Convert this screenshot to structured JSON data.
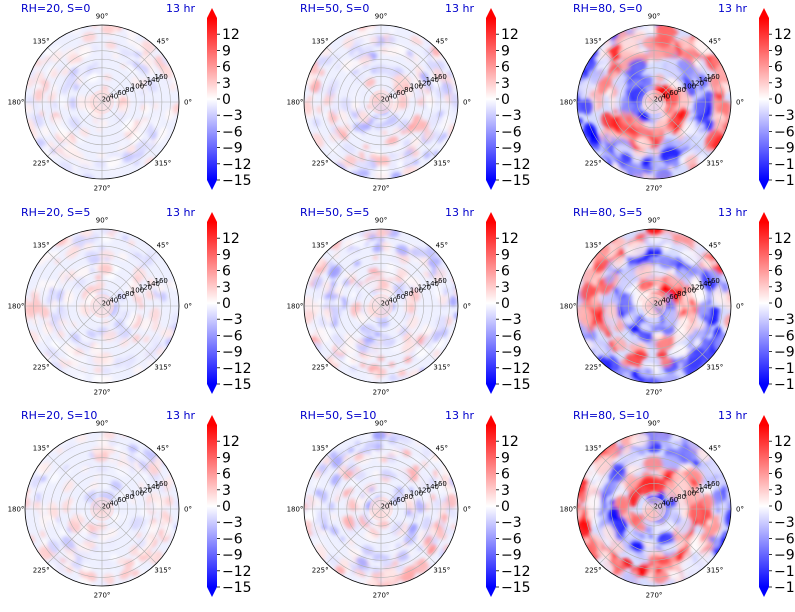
{
  "chart_data": {
    "type": "heatmap",
    "projection": "polar",
    "time_label": "13 hr",
    "angle_ticks": [
      "0°",
      "45°",
      "90°",
      "135°",
      "180°",
      "225°",
      "270°",
      "315°"
    ],
    "radial_ticks": [
      "20",
      "40",
      "60",
      "80",
      "100",
      "120",
      "140",
      "160"
    ],
    "rlim": [
      0,
      180
    ],
    "colorbar": {
      "ticks": [
        "12",
        "9",
        "6",
        "3",
        "0",
        "−3",
        "−6",
        "−9",
        "−12",
        "−15"
      ],
      "tick_values": [
        12,
        9,
        6,
        3,
        0,
        -3,
        -6,
        -9,
        -12,
        -15
      ],
      "range": [
        -15,
        15
      ],
      "colormap": "bwr",
      "extend": "both"
    },
    "colors": {
      "title": "#0000cc",
      "positive": "#ff0000",
      "negative": "#0000ff",
      "zero": "#ffffff"
    },
    "panels": [
      {
        "title": "RH=20, S=0",
        "time": "13 hr",
        "intensity": 0.35,
        "seed": 11
      },
      {
        "title": "RH=50, S=0",
        "time": "13 hr",
        "intensity": 0.5,
        "seed": 23
      },
      {
        "title": "RH=80, S=0",
        "time": "13 hr",
        "intensity": 1.0,
        "seed": 37
      },
      {
        "title": "RH=20, S=5",
        "time": "13 hr",
        "intensity": 0.35,
        "seed": 41
      },
      {
        "title": "RH=50, S=5",
        "time": "13 hr",
        "intensity": 0.55,
        "seed": 53
      },
      {
        "title": "RH=80, S=5",
        "time": "13 hr",
        "intensity": 1.0,
        "seed": 67
      },
      {
        "title": "RH=20, S=10",
        "time": "13 hr",
        "intensity": 0.4,
        "seed": 71
      },
      {
        "title": "RH=50, S=10",
        "time": "13 hr",
        "intensity": 0.55,
        "seed": 83
      },
      {
        "title": "RH=80, S=10",
        "time": "13 hr",
        "intensity": 1.0,
        "seed": 97
      }
    ]
  }
}
